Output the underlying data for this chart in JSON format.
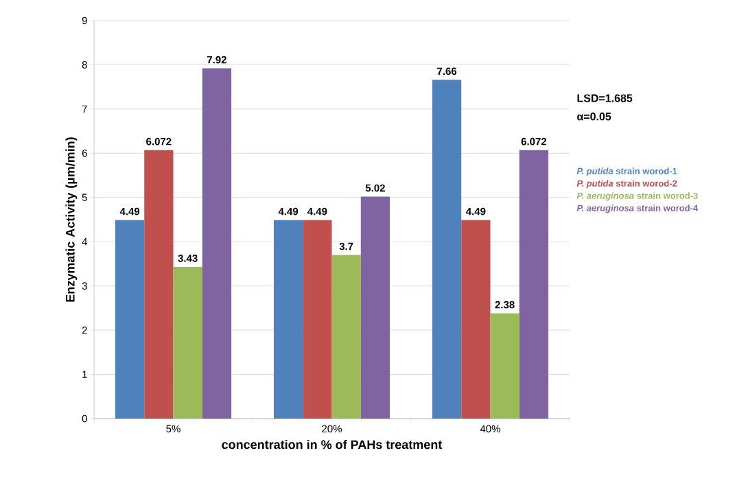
{
  "chart_data": {
    "type": "bar",
    "categories": [
      "5%",
      "20%",
      "40%"
    ],
    "series": [
      {
        "name": "*P. putida* strain worod-1",
        "color": "#4f81bd",
        "values": [
          4.49,
          4.49,
          7.66
        ]
      },
      {
        "name": "*P. putida* strain worod-2",
        "color": "#c0504d",
        "values": [
          6.072,
          4.49,
          4.49
        ]
      },
      {
        "name": "*P. aeruginosa* strain worod-3",
        "color": "#9bbb59",
        "values": [
          3.43,
          3.7,
          2.38
        ]
      },
      {
        "name": "*P. aeruginosa* strain worod-4",
        "color": "#8064a2",
        "values": [
          7.92,
          5.02,
          6.072
        ]
      }
    ],
    "xlabel": "concentration in % of PAHs treatment",
    "ylabel": "Enzymatic Activity (µm/min)",
    "ylim": [
      0,
      9
    ],
    "yticks": [
      0,
      1,
      2,
      3,
      4,
      5,
      6,
      7,
      8,
      9
    ],
    "grid": "y",
    "legend": "right",
    "data_labels": true,
    "annotations": [
      "LSD=1.685",
      "α=0.05"
    ]
  }
}
